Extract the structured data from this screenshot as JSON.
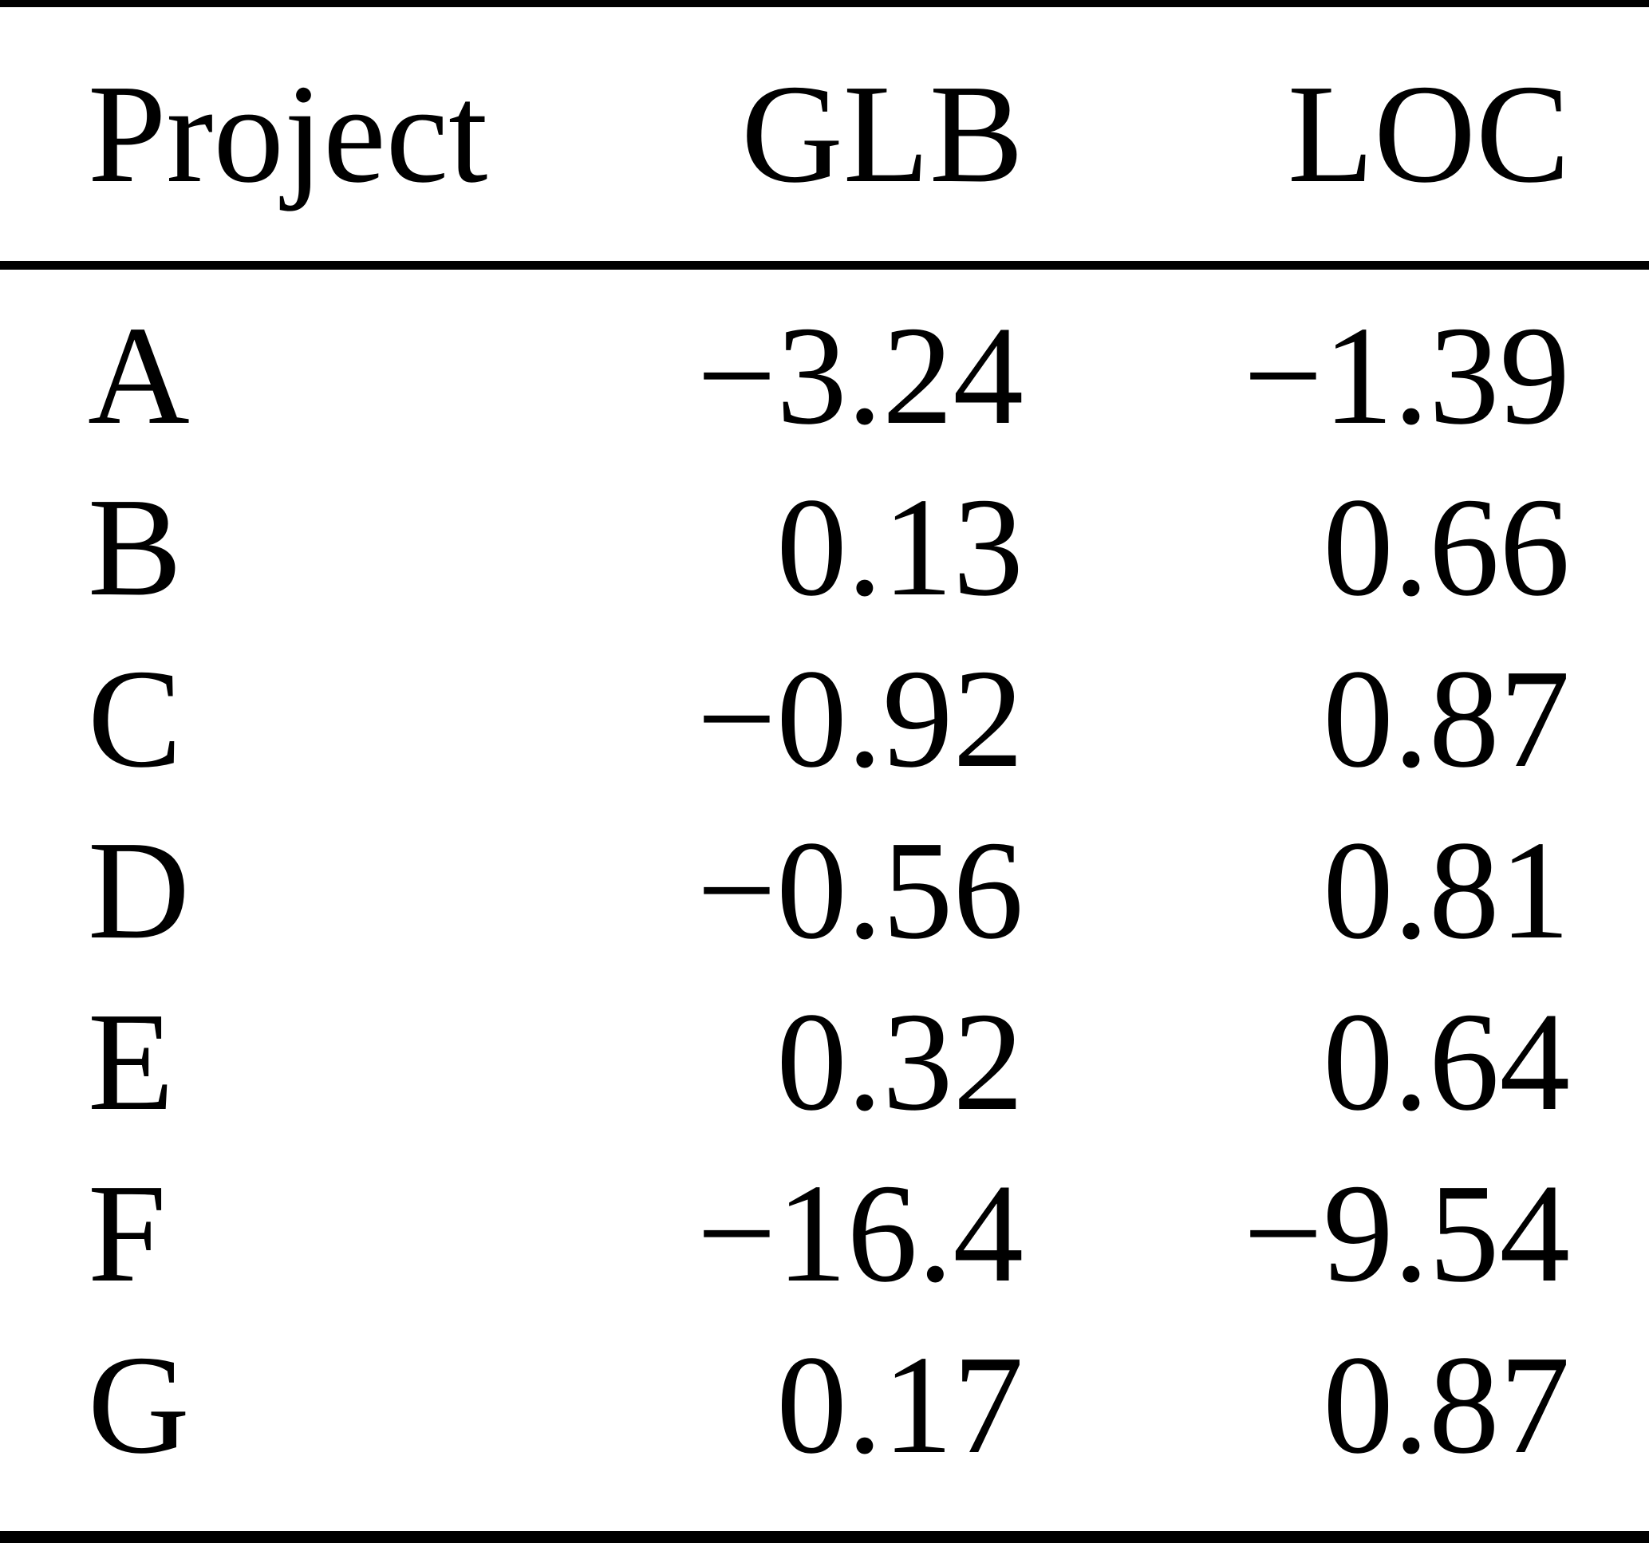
{
  "table": {
    "columns": [
      "Project",
      "GLB",
      "LOC"
    ],
    "rows": [
      {
        "project": "A",
        "glb": "−3.24",
        "loc": "−1.39"
      },
      {
        "project": "B",
        "glb": "0.13",
        "loc": "0.66"
      },
      {
        "project": "C",
        "glb": "−0.92",
        "loc": "0.87"
      },
      {
        "project": "D",
        "glb": "−0.56",
        "loc": "0.81"
      },
      {
        "project": "E",
        "glb": "0.32",
        "loc": "0.64"
      },
      {
        "project": "F",
        "glb": "−16.4",
        "loc": "−9.54"
      },
      {
        "project": "G",
        "glb": "0.17",
        "loc": "0.87"
      }
    ],
    "colors": {
      "text": "#000000",
      "background": "#ffffff",
      "rule": "#000000"
    }
  }
}
